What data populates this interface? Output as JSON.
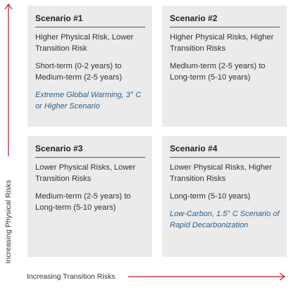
{
  "axes": {
    "y_label": "Increasing Physical Risks",
    "x_label": "Increasing Transition Risks",
    "arrow_color": "#c0152f"
  },
  "scenarios": [
    {
      "title": "Scenario #1",
      "risk": "Higher Physical Risk, Lower Transition Risk",
      "horizon": "Short-term (0-2 years) to Medium-term (2-5 years)",
      "scenario": "Extreme Global Warming, 3° C or Higher Scenario"
    },
    {
      "title": "Scenario #2",
      "risk": "Higher Physical Risks, Higher Transition Risks",
      "horizon": "Medium-term (2-5 years) to Long-term (5-10 years)",
      "scenario": ""
    },
    {
      "title": "Scenario #3",
      "risk": "Lower Physical Risks, Lower Transition Risks",
      "horizon": "Medium-term (2-5 years) to Long-term (5-10 years)",
      "scenario": ""
    },
    {
      "title": "Scenario #4",
      "risk": "Lower Physical Risks, Higher Transition Risks",
      "horizon": "Long-term (5-10 years)",
      "scenario": "Low-Carbon, 1.5° C Scenario of Rapid Decarbonization"
    }
  ]
}
